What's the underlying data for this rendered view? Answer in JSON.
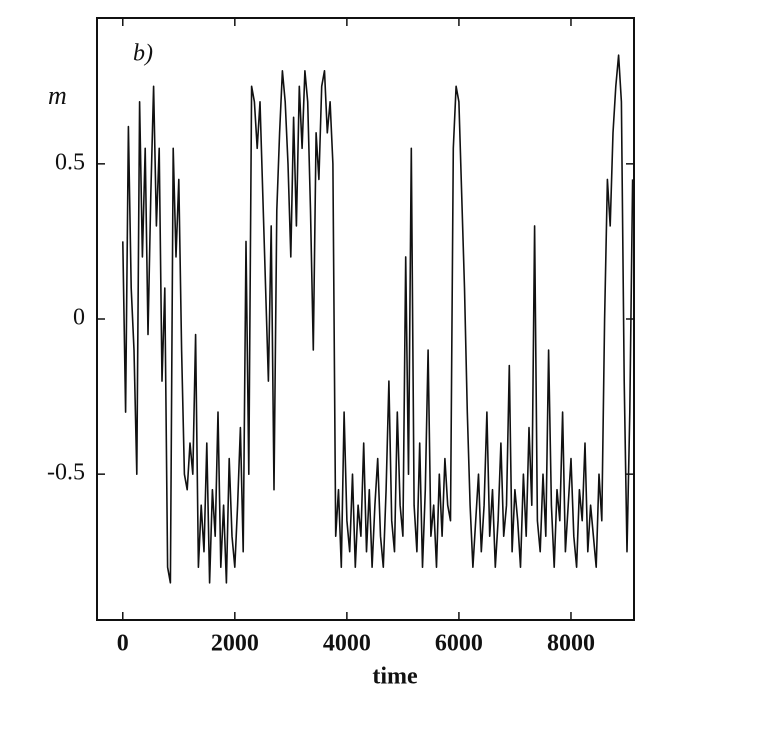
{
  "chart_data": {
    "type": "line",
    "annotation": "b)",
    "x_label": "time",
    "y_label": "m",
    "xlim": [
      -460,
      9125
    ],
    "ylim": [
      -0.97,
      0.97
    ],
    "xticks": [
      0,
      2000,
      4000,
      6000,
      8000
    ],
    "yticks": [
      0.5,
      0,
      -0.5
    ],
    "x": [
      0,
      50,
      100,
      150,
      200,
      250,
      300,
      350,
      400,
      450,
      500,
      550,
      600,
      650,
      700,
      750,
      800,
      850,
      900,
      950,
      1000,
      1050,
      1100,
      1150,
      1200,
      1250,
      1300,
      1350,
      1400,
      1450,
      1500,
      1550,
      1600,
      1650,
      1700,
      1750,
      1800,
      1850,
      1900,
      1950,
      2000,
      2050,
      2100,
      2150,
      2200,
      2250,
      2300,
      2350,
      2400,
      2450,
      2500,
      2550,
      2600,
      2650,
      2700,
      2750,
      2800,
      2850,
      2900,
      2950,
      3000,
      3050,
      3100,
      3150,
      3200,
      3250,
      3300,
      3350,
      3400,
      3450,
      3500,
      3550,
      3600,
      3650,
      3700,
      3750,
      3800,
      3850,
      3900,
      3950,
      4000,
      4050,
      4100,
      4150,
      4200,
      4250,
      4300,
      4350,
      4400,
      4450,
      4500,
      4550,
      4600,
      4650,
      4700,
      4750,
      4800,
      4850,
      4900,
      4950,
      5000,
      5050,
      5100,
      5150,
      5200,
      5250,
      5300,
      5350,
      5400,
      5450,
      5500,
      5550,
      5600,
      5650,
      5700,
      5750,
      5800,
      5850,
      5900,
      5950,
      6000,
      6050,
      6100,
      6150,
      6200,
      6250,
      6300,
      6350,
      6400,
      6450,
      6500,
      6550,
      6600,
      6650,
      6700,
      6750,
      6800,
      6850,
      6900,
      6950,
      7000,
      7050,
      7100,
      7150,
      7200,
      7250,
      7300,
      7350,
      7400,
      7450,
      7500,
      7550,
      7600,
      7650,
      7700,
      7750,
      7800,
      7850,
      7900,
      7950,
      8000,
      8050,
      8100,
      8150,
      8200,
      8250,
      8300,
      8350,
      8400,
      8450,
      8500,
      8550,
      8600,
      8650,
      8700,
      8750,
      8800,
      8850,
      8900,
      8950,
      9000,
      9050,
      9100
    ],
    "series": [
      {
        "color": "#111111",
        "values": [
          0.25,
          -0.3,
          0.62,
          0.1,
          -0.1,
          -0.5,
          0.7,
          0.2,
          0.55,
          -0.05,
          0.4,
          0.75,
          0.3,
          0.55,
          -0.2,
          0.1,
          -0.8,
          -0.85,
          0.55,
          0.2,
          0.45,
          -0.1,
          -0.5,
          -0.55,
          -0.4,
          -0.5,
          -0.05,
          -0.8,
          -0.6,
          -0.75,
          -0.4,
          -0.85,
          -0.55,
          -0.7,
          -0.3,
          -0.8,
          -0.6,
          -0.85,
          -0.45,
          -0.7,
          -0.8,
          -0.6,
          -0.35,
          -0.75,
          0.25,
          -0.5,
          0.75,
          0.7,
          0.55,
          0.7,
          0.4,
          0.1,
          -0.2,
          0.3,
          -0.55,
          0.35,
          0.6,
          0.8,
          0.7,
          0.5,
          0.2,
          0.65,
          0.3,
          0.75,
          0.55,
          0.8,
          0.7,
          0.35,
          -0.1,
          0.6,
          0.45,
          0.75,
          0.8,
          0.6,
          0.7,
          0.5,
          -0.7,
          -0.55,
          -0.8,
          -0.3,
          -0.65,
          -0.75,
          -0.5,
          -0.8,
          -0.6,
          -0.7,
          -0.4,
          -0.75,
          -0.55,
          -0.8,
          -0.6,
          -0.45,
          -0.7,
          -0.8,
          -0.55,
          -0.2,
          -0.65,
          -0.75,
          -0.3,
          -0.6,
          -0.7,
          0.2,
          -0.5,
          0.55,
          -0.6,
          -0.75,
          -0.4,
          -0.8,
          -0.55,
          -0.1,
          -0.7,
          -0.6,
          -0.8,
          -0.5,
          -0.7,
          -0.45,
          -0.6,
          -0.65,
          0.55,
          0.75,
          0.7,
          0.4,
          0.1,
          -0.3,
          -0.6,
          -0.8,
          -0.65,
          -0.5,
          -0.75,
          -0.6,
          -0.3,
          -0.7,
          -0.55,
          -0.8,
          -0.65,
          -0.4,
          -0.7,
          -0.6,
          -0.15,
          -0.75,
          -0.55,
          -0.65,
          -0.8,
          -0.5,
          -0.7,
          -0.35,
          -0.6,
          0.3,
          -0.65,
          -0.75,
          -0.5,
          -0.7,
          -0.1,
          -0.6,
          -0.8,
          -0.55,
          -0.65,
          -0.3,
          -0.75,
          -0.6,
          -0.45,
          -0.7,
          -0.8,
          -0.55,
          -0.65,
          -0.4,
          -0.75,
          -0.6,
          -0.7,
          -0.8,
          -0.5,
          -0.65,
          0.0,
          0.45,
          0.3,
          0.6,
          0.75,
          0.85,
          0.7,
          -0.2,
          -0.75,
          -0.3,
          0.45
        ]
      }
    ]
  }
}
